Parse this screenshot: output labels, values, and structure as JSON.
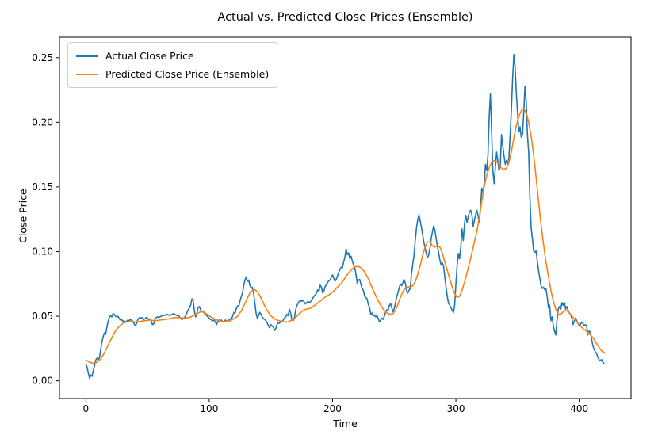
{
  "chart_data": {
    "type": "line",
    "title": "Actual vs. Predicted Close Prices (Ensemble)",
    "xlabel": "Time",
    "ylabel": "Close Price",
    "grid": false,
    "legend_position": "upper left",
    "xlim": [
      -21.4,
      442.0
    ],
    "ylim": [
      -0.0137,
      0.2658
    ],
    "xticks": {
      "values": [
        0,
        100,
        200,
        300,
        400
      ],
      "labels": [
        "0",
        "100",
        "200",
        "300",
        "400"
      ]
    },
    "yticks": {
      "values": [
        0.0,
        0.05,
        0.1,
        0.15,
        0.2,
        0.25
      ],
      "labels": [
        "0.00",
        "0.05",
        "0.10",
        "0.15",
        "0.20",
        "0.25"
      ]
    },
    "series": [
      {
        "name": "Actual Close Price",
        "color": "#1f77b4",
        "x_start": 0,
        "x_step": 1,
        "values": [
          0.013,
          0.0105,
          0.006,
          0.002,
          0.0045,
          0.0035,
          0.008,
          0.0115,
          0.016,
          0.0175,
          0.0165,
          0.018,
          0.024,
          0.03,
          0.034,
          0.037,
          0.036,
          0.041,
          0.046,
          0.049,
          0.0505,
          0.0495,
          0.052,
          0.0515,
          0.05,
          0.0495,
          0.05,
          0.0485,
          0.047,
          0.0475,
          0.046,
          0.0465,
          0.0455,
          0.046,
          0.047,
          0.0465,
          0.0475,
          0.047,
          0.046,
          0.0445,
          0.0425,
          0.044,
          0.047,
          0.0485,
          0.049,
          0.0485,
          0.049,
          0.0475,
          0.048,
          0.049,
          0.0485,
          0.0475,
          0.048,
          0.0465,
          0.0435,
          0.044,
          0.0475,
          0.049,
          0.0495,
          0.049,
          0.0495,
          0.05,
          0.0505,
          0.051,
          0.0505,
          0.051,
          0.0515,
          0.051,
          0.0505,
          0.051,
          0.0515,
          0.052,
          0.0515,
          0.051,
          0.0505,
          0.051,
          0.0495,
          0.048,
          0.0475,
          0.048,
          0.049,
          0.0505,
          0.053,
          0.055,
          0.0565,
          0.0585,
          0.0635,
          0.062,
          0.054,
          0.0495,
          0.052,
          0.057,
          0.0575,
          0.055,
          0.0535,
          0.054,
          0.0525,
          0.051,
          0.0505,
          0.0495,
          0.0485,
          0.0475,
          0.047,
          0.0465,
          0.047,
          0.0455,
          0.0435,
          0.046,
          0.047,
          0.0465,
          0.047,
          0.0455,
          0.046,
          0.047,
          0.0465,
          0.0455,
          0.047,
          0.048,
          0.0475,
          0.05,
          0.053,
          0.0525,
          0.056,
          0.058,
          0.0575,
          0.062,
          0.065,
          0.068,
          0.074,
          0.078,
          0.0805,
          0.077,
          0.078,
          0.074,
          0.0715,
          0.0725,
          0.068,
          0.06,
          0.0525,
          0.0485,
          0.0505,
          0.053,
          0.0515,
          0.0495,
          0.048,
          0.0475,
          0.0465,
          0.045,
          0.0425,
          0.041,
          0.0435,
          0.0425,
          0.0415,
          0.039,
          0.0405,
          0.0435,
          0.045,
          0.0445,
          0.046,
          0.0455,
          0.047,
          0.0485,
          0.0495,
          0.0515,
          0.0505,
          0.0555,
          0.0525,
          0.0475,
          0.0465,
          0.048,
          0.0545,
          0.058,
          0.06,
          0.0615,
          0.0625,
          0.0615,
          0.0625,
          0.061,
          0.0595,
          0.0605,
          0.0615,
          0.0605,
          0.061,
          0.0625,
          0.064,
          0.0655,
          0.0665,
          0.068,
          0.0705,
          0.0695,
          0.074,
          0.0725,
          0.068,
          0.0695,
          0.073,
          0.0745,
          0.076,
          0.0775,
          0.078,
          0.08,
          0.082,
          0.0795,
          0.077,
          0.0785,
          0.081,
          0.084,
          0.086,
          0.088,
          0.0875,
          0.092,
          0.0955,
          0.102,
          0.0975,
          0.099,
          0.0945,
          0.0965,
          0.0925,
          0.09,
          0.0875,
          0.0825,
          0.0755,
          0.078,
          0.0785,
          0.0745,
          0.0715,
          0.07,
          0.0655,
          0.0645,
          0.0635,
          0.059,
          0.0565,
          0.0515,
          0.0525,
          0.05,
          0.051,
          0.0495,
          0.0505,
          0.0485,
          0.0455,
          0.047,
          0.0485,
          0.0475,
          0.05,
          0.053,
          0.055,
          0.0545,
          0.058,
          0.06,
          0.0565,
          0.0535,
          0.056,
          0.06,
          0.065,
          0.068,
          0.072,
          0.075,
          0.0735,
          0.076,
          0.0785,
          0.0755,
          0.07,
          0.068,
          0.07,
          0.0715,
          0.083,
          0.09,
          0.097,
          0.108,
          0.118,
          0.124,
          0.1285,
          0.124,
          0.119,
          0.113,
          0.1075,
          0.103,
          0.0985,
          0.0955,
          0.0975,
          0.103,
          0.11,
          0.1155,
          0.12,
          0.1165,
          0.11,
          0.104,
          0.0995,
          0.0935,
          0.0895,
          0.0915,
          0.089,
          0.08,
          0.0725,
          0.0655,
          0.06,
          0.0585,
          0.0565,
          0.0545,
          0.053,
          0.0585,
          0.0755,
          0.089,
          0.0985,
          0.0945,
          0.104,
          0.1175,
          0.1085,
          0.122,
          0.128,
          0.1225,
          0.127,
          0.1305,
          0.132,
          0.1285,
          0.1195,
          0.124,
          0.1285,
          0.132,
          0.1275,
          0.1225,
          0.135,
          0.149,
          0.1455,
          0.153,
          0.1675,
          0.1625,
          0.1745,
          0.2055,
          0.222,
          0.1915,
          0.1625,
          0.1525,
          0.1655,
          0.177,
          0.1695,
          0.1625,
          0.1675,
          0.1905,
          0.1815,
          0.1745,
          0.1675,
          0.1705,
          0.1675,
          0.1725,
          0.1905,
          0.2105,
          0.2335,
          0.2525,
          0.2435,
          0.2225,
          0.2065,
          0.1925,
          0.1965,
          0.1885,
          0.1905,
          0.2065,
          0.228,
          0.2165,
          0.1905,
          0.1765,
          0.1425,
          0.1185,
          0.1105,
          0.1005,
          0.0995,
          0.1005,
          0.0925,
          0.0855,
          0.0795,
          0.0735,
          0.0715,
          0.0725,
          0.0705,
          0.0715,
          0.0655,
          0.0565,
          0.0585,
          0.0465,
          0.0495,
          0.0425,
          0.0385,
          0.0355,
          0.0465,
          0.0555,
          0.0575,
          0.0555,
          0.0605,
          0.0585,
          0.0605,
          0.0555,
          0.0575,
          0.0545,
          0.0525,
          0.0515,
          0.0485,
          0.0435,
          0.0465,
          0.0485,
          0.0465,
          0.0445,
          0.0425,
          0.0435,
          0.0455,
          0.0445,
          0.0425,
          0.0435,
          0.0425,
          0.0355,
          0.0385,
          0.0375,
          0.0325,
          0.0275,
          0.0245,
          0.0225,
          0.0215,
          0.0185,
          0.0165,
          0.0155,
          0.0165,
          0.0145,
          0.0135
        ]
      },
      {
        "name": "Predicted Close Price (Ensemble)",
        "color": "#ff7f0e",
        "points": [
          [
            0,
            0.016
          ],
          [
            3,
            0.0145
          ],
          [
            6,
            0.0135
          ],
          [
            9,
            0.0145
          ],
          [
            12,
            0.017
          ],
          [
            15,
            0.0215
          ],
          [
            18,
            0.0275
          ],
          [
            21,
            0.0335
          ],
          [
            24,
            0.0385
          ],
          [
            27,
            0.042
          ],
          [
            30,
            0.0445
          ],
          [
            33,
            0.0455
          ],
          [
            36,
            0.046
          ],
          [
            40,
            0.0455
          ],
          [
            44,
            0.046
          ],
          [
            48,
            0.0465
          ],
          [
            52,
            0.047
          ],
          [
            56,
            0.0465
          ],
          [
            60,
            0.047
          ],
          [
            64,
            0.0475
          ],
          [
            68,
            0.048
          ],
          [
            72,
            0.049
          ],
          [
            76,
            0.049
          ],
          [
            80,
            0.0485
          ],
          [
            84,
            0.049
          ],
          [
            87,
            0.0505
          ],
          [
            90,
            0.052
          ],
          [
            93,
            0.0535
          ],
          [
            96,
            0.053
          ],
          [
            99,
            0.051
          ],
          [
            102,
            0.049
          ],
          [
            105,
            0.0475
          ],
          [
            108,
            0.0465
          ],
          [
            111,
            0.046
          ],
          [
            114,
            0.046
          ],
          [
            117,
            0.0465
          ],
          [
            120,
            0.048
          ],
          [
            123,
            0.05
          ],
          [
            126,
            0.054
          ],
          [
            129,
            0.06
          ],
          [
            131,
            0.064
          ],
          [
            133,
            0.068
          ],
          [
            135,
            0.07
          ],
          [
            137,
            0.0705
          ],
          [
            139,
            0.069
          ],
          [
            141,
            0.066
          ],
          [
            143,
            0.062
          ],
          [
            145,
            0.058
          ],
          [
            147,
            0.0545
          ],
          [
            149,
            0.0515
          ],
          [
            151,
            0.0495
          ],
          [
            153,
            0.048
          ],
          [
            155,
            0.047
          ],
          [
            157,
            0.0465
          ],
          [
            159,
            0.046
          ],
          [
            161,
            0.0455
          ],
          [
            163,
            0.0455
          ],
          [
            165,
            0.046
          ],
          [
            167,
            0.047
          ],
          [
            169,
            0.048
          ],
          [
            171,
            0.05
          ],
          [
            173,
            0.052
          ],
          [
            175,
            0.0535
          ],
          [
            177,
            0.055
          ],
          [
            179,
            0.0555
          ],
          [
            181,
            0.056
          ],
          [
            183,
            0.0565
          ],
          [
            185,
            0.058
          ],
          [
            187,
            0.0595
          ],
          [
            189,
            0.061
          ],
          [
            191,
            0.0625
          ],
          [
            193,
            0.064
          ],
          [
            195,
            0.0655
          ],
          [
            197,
            0.0665
          ],
          [
            199,
            0.068
          ],
          [
            201,
            0.0695
          ],
          [
            203,
            0.0715
          ],
          [
            205,
            0.0735
          ],
          [
            207,
            0.0755
          ],
          [
            209,
            0.078
          ],
          [
            211,
            0.081
          ],
          [
            213,
            0.0835
          ],
          [
            215,
            0.0855
          ],
          [
            217,
            0.0875
          ],
          [
            219,
            0.0885
          ],
          [
            221,
            0.0885
          ],
          [
            223,
            0.0875
          ],
          [
            225,
            0.0855
          ],
          [
            227,
            0.0825
          ],
          [
            229,
            0.079
          ],
          [
            231,
            0.0745
          ],
          [
            233,
            0.07
          ],
          [
            235,
            0.066
          ],
          [
            237,
            0.062
          ],
          [
            239,
            0.0585
          ],
          [
            241,
            0.0555
          ],
          [
            243,
            0.0535
          ],
          [
            245,
            0.052
          ],
          [
            247,
            0.0515
          ],
          [
            249,
            0.052
          ],
          [
            251,
            0.0545
          ],
          [
            253,
            0.059
          ],
          [
            255,
            0.0645
          ],
          [
            257,
            0.069
          ],
          [
            259,
            0.0715
          ],
          [
            261,
            0.0725
          ],
          [
            263,
            0.073
          ],
          [
            265,
            0.0735
          ],
          [
            267,
            0.0765
          ],
          [
            269,
            0.082
          ],
          [
            271,
            0.089
          ],
          [
            273,
            0.097
          ],
          [
            275,
            0.1035
          ],
          [
            277,
            0.1075
          ],
          [
            279,
            0.1075
          ],
          [
            281,
            0.1045
          ],
          [
            283,
            0.1035
          ],
          [
            285,
            0.1045
          ],
          [
            287,
            0.1035
          ],
          [
            289,
            0.099
          ],
          [
            291,
            0.092
          ],
          [
            293,
            0.0855
          ],
          [
            295,
            0.079
          ],
          [
            297,
            0.0725
          ],
          [
            299,
            0.0675
          ],
          [
            301,
            0.0645
          ],
          [
            303,
            0.0655
          ],
          [
            305,
            0.07
          ],
          [
            307,
            0.0765
          ],
          [
            309,
            0.0835
          ],
          [
            311,
            0.091
          ],
          [
            313,
            0.099
          ],
          [
            315,
            0.1075
          ],
          [
            317,
            0.1155
          ],
          [
            319,
            0.1265
          ],
          [
            321,
            0.139
          ],
          [
            323,
            0.1505
          ],
          [
            325,
            0.159
          ],
          [
            327,
            0.165
          ],
          [
            329,
            0.169
          ],
          [
            331,
            0.1705
          ],
          [
            333,
            0.1695
          ],
          [
            335,
            0.167
          ],
          [
            337,
            0.1645
          ],
          [
            339,
            0.1635
          ],
          [
            341,
            0.1645
          ],
          [
            343,
            0.169
          ],
          [
            345,
            0.1775
          ],
          [
            347,
            0.188
          ],
          [
            349,
            0.1975
          ],
          [
            351,
            0.2045
          ],
          [
            353,
            0.209
          ],
          [
            355,
            0.2105
          ],
          [
            357,
            0.2075
          ],
          [
            359,
            0.2
          ],
          [
            361,
            0.189
          ],
          [
            363,
            0.175
          ],
          [
            365,
            0.1575
          ],
          [
            367,
            0.139
          ],
          [
            369,
            0.1215
          ],
          [
            371,
            0.106
          ],
          [
            373,
            0.0925
          ],
          [
            375,
            0.0805
          ],
          [
            377,
            0.07
          ],
          [
            379,
            0.0615
          ],
          [
            381,
            0.0555
          ],
          [
            383,
            0.0515
          ],
          [
            385,
            0.0515
          ],
          [
            387,
            0.0535
          ],
          [
            389,
            0.0545
          ],
          [
            391,
            0.0535
          ],
          [
            393,
            0.0515
          ],
          [
            395,
            0.049
          ],
          [
            397,
            0.0465
          ],
          [
            399,
            0.0445
          ],
          [
            401,
            0.0425
          ],
          [
            403,
            0.0405
          ],
          [
            405,
            0.039
          ],
          [
            407,
            0.0375
          ],
          [
            409,
            0.0355
          ],
          [
            411,
            0.0335
          ],
          [
            413,
            0.0305
          ],
          [
            415,
            0.0275
          ],
          [
            417,
            0.0245
          ],
          [
            419,
            0.0225
          ],
          [
            421,
            0.0215
          ]
        ]
      }
    ]
  },
  "colors": {
    "actual_line": "#1f77b4",
    "predicted_line": "#ff7f0e",
    "spine": "#000000",
    "background": "#ffffff",
    "legend_border": "#cccccc"
  }
}
